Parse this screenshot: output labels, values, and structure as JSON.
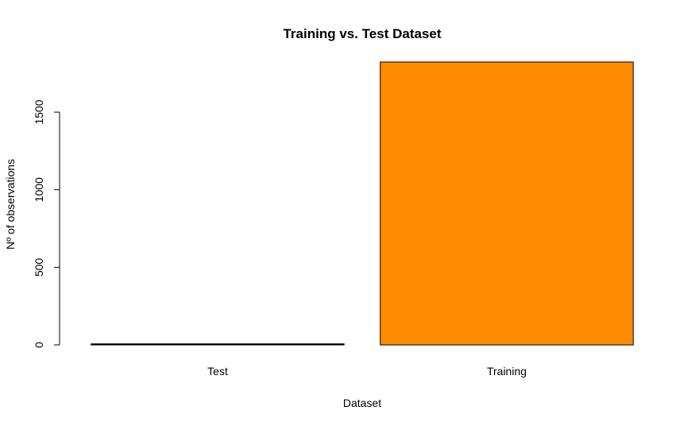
{
  "chart_data": {
    "type": "bar",
    "title": "Training vs. Test Dataset",
    "xlabel": "Dataset",
    "ylabel": "Nº of observations",
    "categories": [
      "Test",
      "Training"
    ],
    "values": [
      7,
      1823
    ],
    "colors": [
      "#000033",
      "#ff8c00"
    ],
    "ylim": [
      0,
      1823
    ],
    "yticks": [
      0,
      500,
      1000,
      1500
    ],
    "grid": false,
    "legend": "none"
  }
}
